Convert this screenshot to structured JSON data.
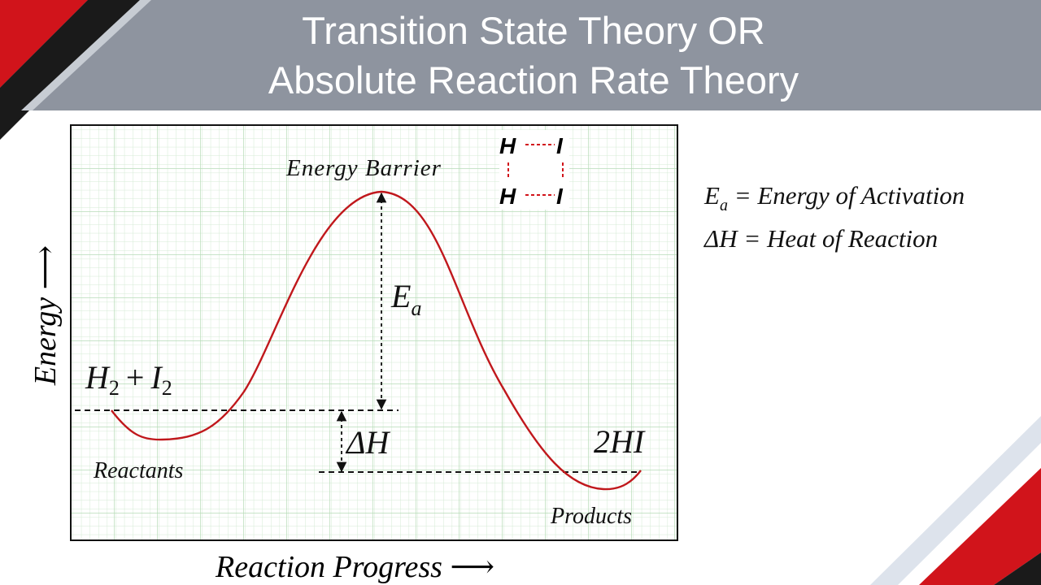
{
  "title": {
    "line1": "Transition State Theory OR",
    "line2": "Absolute Reaction Rate Theory"
  },
  "diagram": {
    "y_axis_label": "Energy",
    "y_axis_arrow": "⟶",
    "x_axis_label": "Reaction Progress",
    "x_axis_arrow": "⟶",
    "barrier_label": "Energy Barrier",
    "ea_symbol": "E",
    "ea_subscript": "a",
    "dh_label": "ΔH",
    "reactants_formula": {
      "h": "H",
      "h_sub": "2",
      "plus": "+",
      "i": "I",
      "i_sub": "2"
    },
    "reactants_label": "Reactants",
    "products_formula": "2HI",
    "products_label": "Products",
    "transition_complex": {
      "top_left": "H",
      "top_right": "I",
      "bottom_left": "H",
      "bottom_right": "I"
    }
  },
  "legend": {
    "ea_symbol": "E",
    "ea_subscript": "a",
    "ea_text": " = Energy of Activation",
    "dh_symbol": "ΔH",
    "dh_text": " = Heat of Reaction"
  },
  "colors": {
    "header": "#8e949f",
    "curve": "#c0181c",
    "grid": "#bfe0c0",
    "accent_red": "#d1141b",
    "accent_dark": "#1a1a1a"
  }
}
